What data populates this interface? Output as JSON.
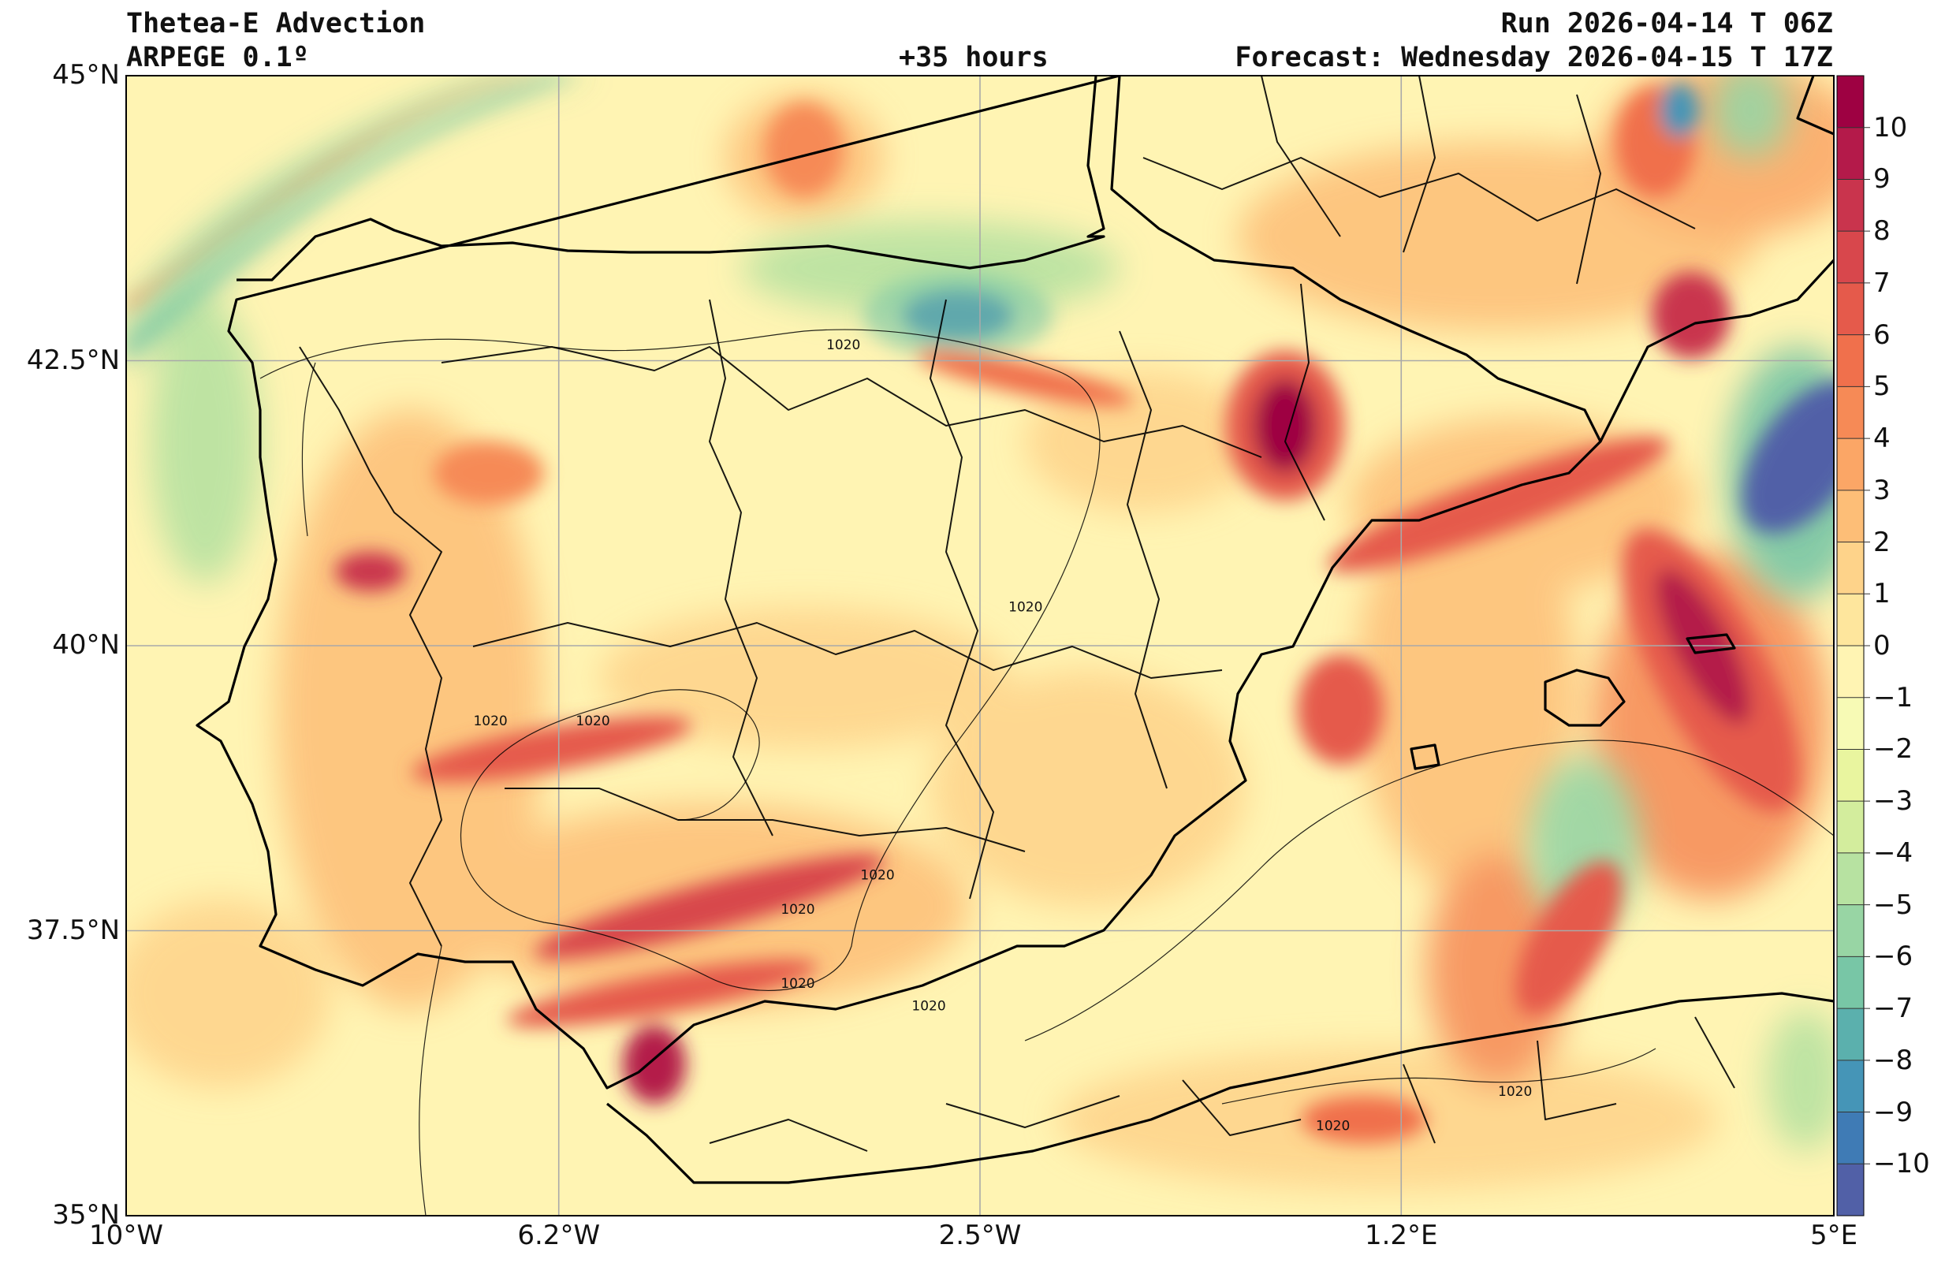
{
  "header": {
    "title": "Thetea-E Advection",
    "model": "ARPEGE 0.1º",
    "lead_time": "+35 hours",
    "run": "Run 2026-04-14 T 06Z",
    "forecast": "Forecast: Wednesday 2026-04-15 T 17Z"
  },
  "map": {
    "lon_range": [
      -10,
      5
    ],
    "lat_range": [
      35,
      45
    ],
    "x_ticks": [
      {
        "lon": -10,
        "label": "10°W"
      },
      {
        "lon": -6.2,
        "label": "6.2°W"
      },
      {
        "lon": -2.5,
        "label": "2.5°W"
      },
      {
        "lon": 1.2,
        "label": "1.2°E"
      },
      {
        "lon": 5,
        "label": "5°E"
      }
    ],
    "y_ticks": [
      {
        "lat": 45,
        "label": "45°N"
      },
      {
        "lat": 42.5,
        "label": "42.5°N"
      },
      {
        "lat": 40,
        "label": "40°N"
      },
      {
        "lat": 37.5,
        "label": "37.5°N"
      },
      {
        "lat": 35,
        "label": "35°N"
      }
    ],
    "isobar_labels": [
      {
        "lon": -3.7,
        "lat": 42.6,
        "text": "1020"
      },
      {
        "lon": -6.8,
        "lat": 39.3,
        "text": "1020"
      },
      {
        "lon": -5.9,
        "lat": 39.3,
        "text": "1020"
      },
      {
        "lon": -2.1,
        "lat": 40.3,
        "text": "1020"
      },
      {
        "lon": -3.4,
        "lat": 37.95,
        "text": "1020"
      },
      {
        "lon": -4.1,
        "lat": 37.65,
        "text": "1020"
      },
      {
        "lon": -4.1,
        "lat": 37.0,
        "text": "1020"
      },
      {
        "lon": -2.95,
        "lat": 36.8,
        "text": "1020"
      },
      {
        "lon": 0.6,
        "lat": 35.75,
        "text": "1020"
      },
      {
        "lon": 2.2,
        "lat": 36.05,
        "text": "1020"
      }
    ]
  },
  "colorbar": {
    "levels": [
      -11,
      -10,
      -9,
      -8,
      -7,
      -6,
      -5,
      -4,
      -3,
      -2,
      -1,
      0,
      1,
      2,
      3,
      4,
      5,
      6,
      7,
      8,
      9,
      10,
      11
    ],
    "labels": [
      {
        "v": 10,
        "t": "10"
      },
      {
        "v": 9,
        "t": "9"
      },
      {
        "v": 8,
        "t": "8"
      },
      {
        "v": 7,
        "t": "7"
      },
      {
        "v": 6,
        "t": "6"
      },
      {
        "v": 5,
        "t": "5"
      },
      {
        "v": 4,
        "t": "4"
      },
      {
        "v": 3,
        "t": "3"
      },
      {
        "v": 2,
        "t": "2"
      },
      {
        "v": 1,
        "t": "1"
      },
      {
        "v": 0,
        "t": "0"
      },
      {
        "v": -1,
        "t": "−1"
      },
      {
        "v": -2,
        "t": "−2"
      },
      {
        "v": -3,
        "t": "−3"
      },
      {
        "v": -4,
        "t": "−4"
      },
      {
        "v": -5,
        "t": "−5"
      },
      {
        "v": -6,
        "t": "−6"
      },
      {
        "v": -7,
        "t": "−7"
      },
      {
        "v": -8,
        "t": "−8"
      },
      {
        "v": -9,
        "t": "−9"
      },
      {
        "v": -10,
        "t": "−10"
      }
    ],
    "colors": [
      "#9e0142",
      "#b41a4a",
      "#c9344d",
      "#d8474c",
      "#e55a4b",
      "#f0704c",
      "#f68a56",
      "#fba666",
      "#fdbe77",
      "#fed38a",
      "#fee69d",
      "#fff4b3",
      "#f7fab5",
      "#e9f59f",
      "#d3ed9d",
      "#b7e2a1",
      "#98d5a4",
      "#78c6a6",
      "#5bb0ad",
      "#4595b7",
      "#3f7bb5",
      "#5160a7",
      "#5e4fa2"
    ]
  },
  "features": [
    {
      "lon": -0.6,
      "lat": 42.0,
      "v": 10
    },
    {
      "lon": 4.2,
      "lat": 39.9,
      "v": 10
    },
    {
      "lon": 4.5,
      "lat": 42.9,
      "v": 8
    },
    {
      "lon": -5.3,
      "lat": 36.4,
      "v": 9
    },
    {
      "lon": -8.5,
      "lat": 40.6,
      "v": 8
    },
    {
      "lon": -5.0,
      "lat": 37.5,
      "v": 8
    },
    {
      "lon": 4.8,
      "lat": 41.9,
      "v": -10
    },
    {
      "lon": -2.7,
      "lat": 42.8,
      "v": -9
    },
    {
      "lon": 2.1,
      "lat": 38.2,
      "v": -5
    }
  ]
}
